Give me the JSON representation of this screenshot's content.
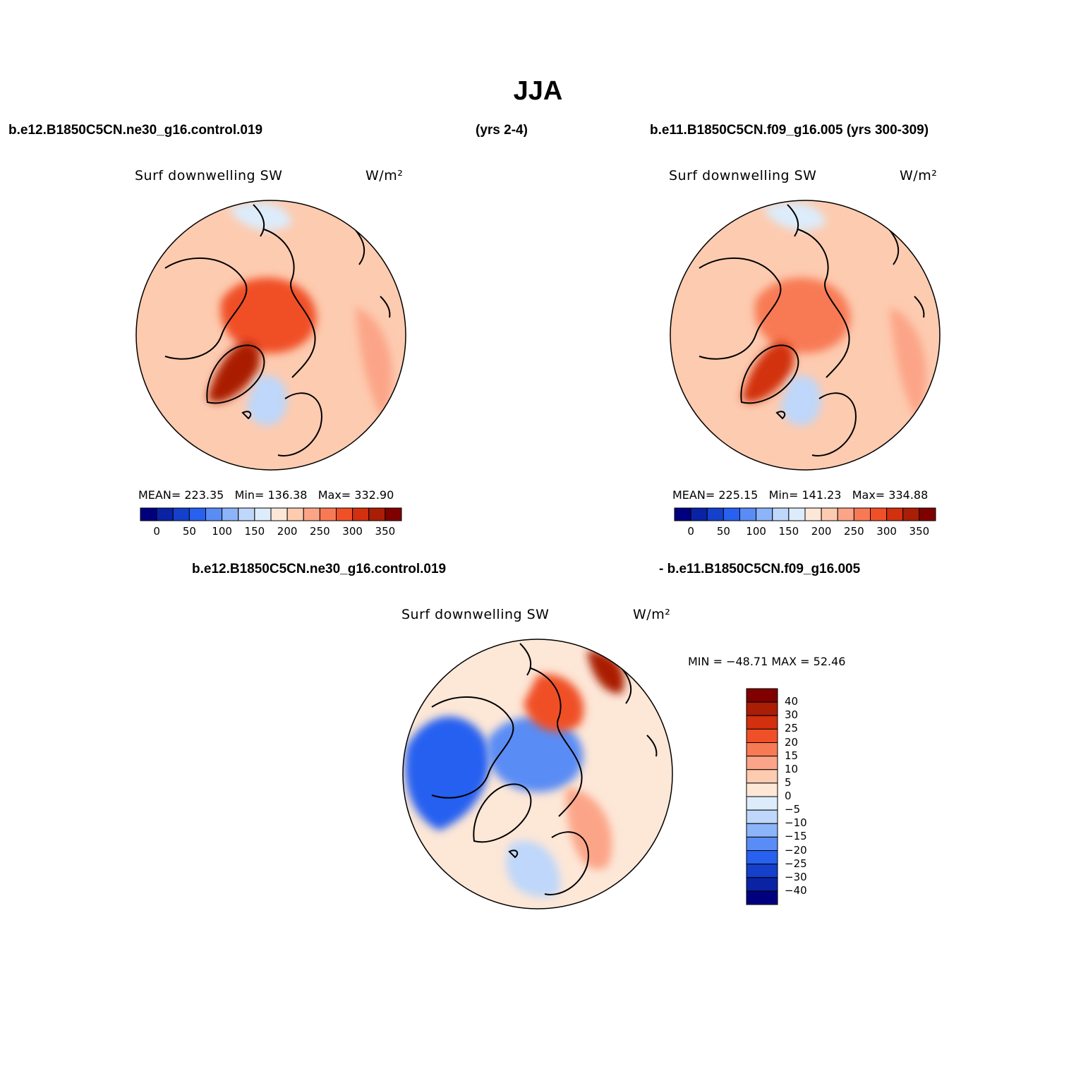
{
  "figure": {
    "title": "JJA",
    "case1_label": "b.e12.B1850C5CN.ne30_g16.control.019",
    "case1_years": "(yrs 2-4)",
    "case2_label": "b.e11.B1850C5CN.f09_g16.005 (yrs 300-309)",
    "diff_label_left": "b.e12.B1850C5CN.ne30_g16.control.019",
    "diff_label_right": "- b.e11.B1850C5CN.f09_g16.005"
  },
  "colors": {
    "abs_scale": [
      "#00007f",
      "#0a23a5",
      "#1440cc",
      "#2860f0",
      "#5a8cf5",
      "#8cb4f8",
      "#bed7fa",
      "#dcecfb",
      "#fde7d7",
      "#fdcbb0",
      "#fca487",
      "#f87a55",
      "#f05028",
      "#d2300e",
      "#aa1e06",
      "#800000"
    ],
    "diff_scale": [
      "#00007f",
      "#0a23a5",
      "#1440cc",
      "#2860f0",
      "#5a8cf5",
      "#8cb4f8",
      "#bed7fa",
      "#dcecfb",
      "#fde7d7",
      "#fdcbb0",
      "#fca487",
      "#f87a55",
      "#f05028",
      "#d2300e",
      "#aa1e06",
      "#800000"
    ]
  },
  "chart_data": [
    {
      "type": "polar-contour-map",
      "panel": "case1",
      "title_left": "Surf downwelling SW",
      "units": "W/m²",
      "stats": {
        "mean_label": "MEAN=",
        "mean": "223.35",
        "min_label": "Min=",
        "min": "136.38",
        "max_label": "Max=",
        "max": "332.90"
      },
      "colorbar": {
        "levels": [
          "0",
          "50",
          "100",
          "150",
          "200",
          "250",
          "300",
          "350"
        ],
        "bins": 16
      },
      "regions": [
        {
          "name": "background",
          "level": 9
        },
        {
          "name": "arctic-ocean",
          "level": 12
        },
        {
          "name": "greenland",
          "level": 14
        },
        {
          "name": "east-atlantic",
          "level": 6
        },
        {
          "name": "siberia-coast",
          "level": 7
        },
        {
          "name": "north-pacific",
          "level": 10
        }
      ]
    },
    {
      "type": "polar-contour-map",
      "panel": "case2",
      "title_left": "Surf downwelling SW",
      "units": "W/m²",
      "stats": {
        "mean_label": "MEAN=",
        "mean": "225.15",
        "min_label": "Min=",
        "min": "141.23",
        "max_label": "Max=",
        "max": "334.88"
      },
      "colorbar": {
        "levels": [
          "0",
          "50",
          "100",
          "150",
          "200",
          "250",
          "300",
          "350"
        ],
        "bins": 16
      },
      "regions": [
        {
          "name": "background",
          "level": 9
        },
        {
          "name": "arctic-ocean",
          "level": 11
        },
        {
          "name": "greenland",
          "level": 13
        },
        {
          "name": "east-atlantic",
          "level": 6
        },
        {
          "name": "siberia-coast",
          "level": 7
        },
        {
          "name": "north-pacific",
          "level": 10
        }
      ]
    },
    {
      "type": "polar-contour-map",
      "panel": "difference",
      "title_left": "Surf downwelling SW",
      "units": "W/m²",
      "stats_text": "MIN = −48.71  MAX =   52.46",
      "colorbar": {
        "levels": [
          "40",
          "30",
          "25",
          "20",
          "15",
          "10",
          "5",
          "0",
          "−5",
          "−10",
          "−15",
          "−20",
          "−25",
          "−30",
          "−40"
        ],
        "bins": 16
      },
      "regions": [
        {
          "name": "background",
          "level": 8
        },
        {
          "name": "canada",
          "level": 3
        },
        {
          "name": "arctic-ocean",
          "level": 4
        },
        {
          "name": "siberia",
          "level": 12
        },
        {
          "name": "north-atlantic",
          "level": 6
        },
        {
          "name": "europe",
          "level": 10
        },
        {
          "name": "chukotka",
          "level": 14
        }
      ]
    }
  ]
}
